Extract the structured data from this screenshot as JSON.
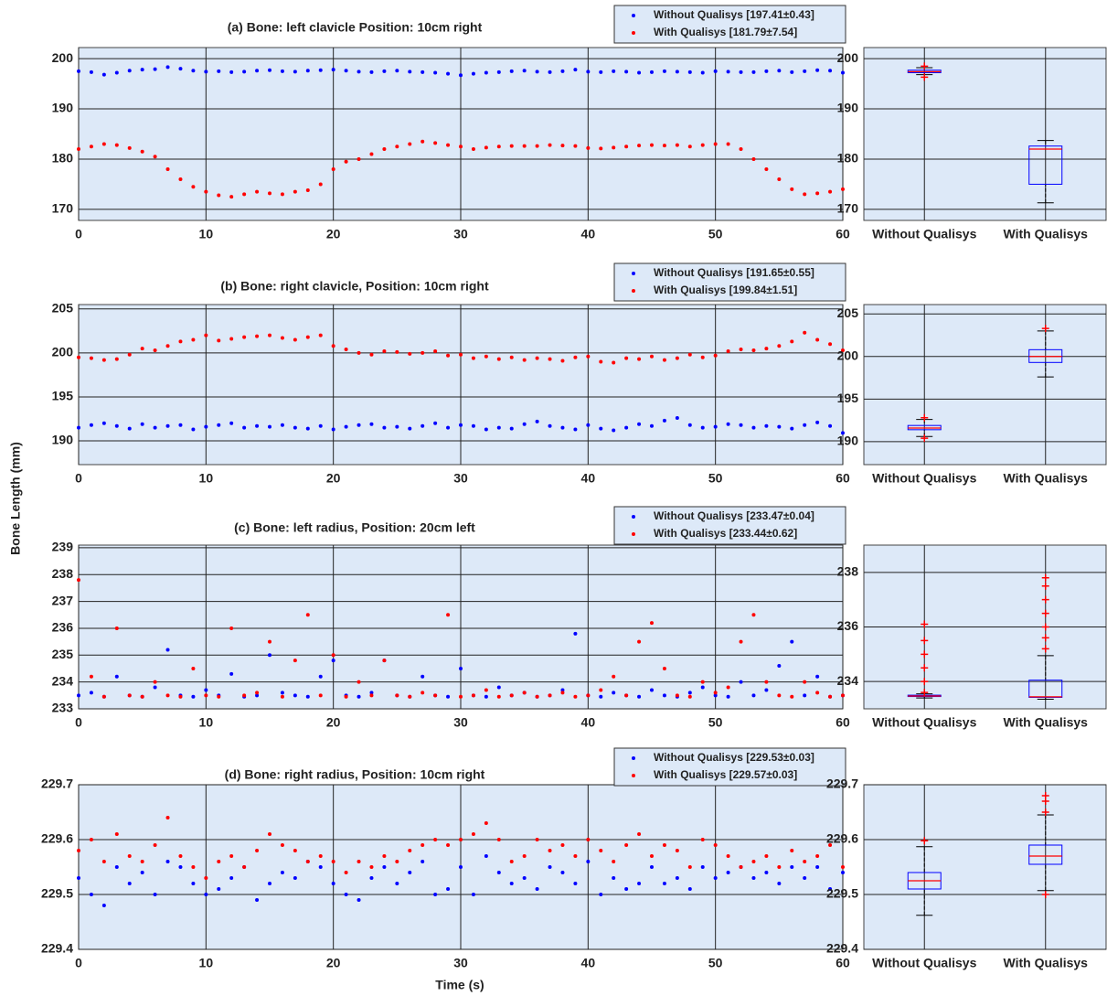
{
  "figure": {
    "xlabel": "Time (s)",
    "ylabel": "Bone Length (mm)"
  },
  "chart_data": [
    {
      "type": "scatter",
      "title": "(a) Bone: left clavicle Position: 10cm right",
      "x": [
        0,
        1,
        2,
        3,
        4,
        5,
        6,
        7,
        8,
        9,
        10,
        11,
        12,
        13,
        14,
        15,
        16,
        17,
        18,
        19,
        20,
        21,
        22,
        23,
        24,
        25,
        26,
        27,
        28,
        29,
        30,
        31,
        32,
        33,
        34,
        35,
        36,
        37,
        38,
        39,
        40,
        41,
        42,
        43,
        44,
        45,
        46,
        47,
        48,
        49,
        50,
        51,
        52,
        53,
        54,
        55,
        56,
        57,
        58,
        59,
        60
      ],
      "series": [
        {
          "name": "Without Qualisys [197.41±0.43]",
          "color": "#0000ff",
          "values": [
            197.5,
            197.3,
            196.8,
            197.2,
            197.6,
            197.8,
            197.9,
            198.3,
            198.0,
            197.6,
            197.4,
            197.5,
            197.3,
            197.4,
            197.6,
            197.7,
            197.5,
            197.4,
            197.6,
            197.7,
            197.8,
            197.6,
            197.4,
            197.3,
            197.5,
            197.6,
            197.4,
            197.3,
            197.2,
            197.0,
            196.7,
            197.0,
            197.2,
            197.3,
            197.5,
            197.6,
            197.4,
            197.3,
            197.5,
            197.8,
            197.4,
            197.3,
            197.5,
            197.4,
            197.2,
            197.3,
            197.5,
            197.4,
            197.3,
            197.2,
            197.5,
            197.4,
            197.3,
            197.3,
            197.5,
            197.6,
            197.3,
            197.5,
            197.7,
            197.6,
            197.2
          ]
        },
        {
          "name": "With Qualisys [181.79±7.54]",
          "color": "#ff0000",
          "values": [
            182,
            182.5,
            183,
            182.8,
            182.2,
            181.5,
            180.5,
            178,
            176,
            174.5,
            173.5,
            172.8,
            172.5,
            173,
            173.5,
            173.2,
            173,
            173.5,
            173.8,
            175,
            178,
            179.5,
            180,
            181,
            182,
            182.5,
            183,
            183.5,
            183.2,
            182.8,
            182.5,
            182,
            182.3,
            182.5,
            182.6,
            182.6,
            182.6,
            182.8,
            182.7,
            182.6,
            182.2,
            182.1,
            182.3,
            182.5,
            182.7,
            182.8,
            182.7,
            182.8,
            182.5,
            182.8,
            183,
            183,
            182,
            180,
            178,
            176,
            174,
            173,
            173.2,
            173.5,
            174
          ]
        }
      ],
      "xlim": [
        0,
        60
      ],
      "xticks": [
        0,
        10,
        20,
        30,
        40,
        50,
        60
      ],
      "ylim": [
        167.8,
        202.2
      ],
      "yticks": [
        170,
        180,
        190,
        200
      ],
      "grid": true
    },
    {
      "type": "scatter",
      "title": "(b) Bone: right clavicle, Position: 10cm right",
      "x": [
        0,
        1,
        2,
        3,
        4,
        5,
        6,
        7,
        8,
        9,
        10,
        11,
        12,
        13,
        14,
        15,
        16,
        17,
        18,
        19,
        20,
        21,
        22,
        23,
        24,
        25,
        26,
        27,
        28,
        29,
        30,
        31,
        32,
        33,
        34,
        35,
        36,
        37,
        38,
        39,
        40,
        41,
        42,
        43,
        44,
        45,
        46,
        47,
        48,
        49,
        50,
        51,
        52,
        53,
        54,
        55,
        56,
        57,
        58,
        59,
        60
      ],
      "series": [
        {
          "name": "Without Qualisys [191.65±0.55]",
          "color": "#0000ff",
          "values": [
            191.5,
            191.8,
            192,
            191.7,
            191.4,
            191.9,
            191.5,
            191.7,
            191.8,
            191.3,
            191.6,
            191.8,
            192,
            191.5,
            191.7,
            191.6,
            191.8,
            191.5,
            191.4,
            191.7,
            191.3,
            191.6,
            191.8,
            191.9,
            191.5,
            191.6,
            191.4,
            191.7,
            192,
            191.5,
            191.8,
            191.7,
            191.3,
            191.5,
            191.4,
            191.9,
            192.2,
            191.7,
            191.5,
            191.3,
            191.8,
            191.4,
            191.2,
            191.5,
            191.9,
            191.7,
            192.3,
            192.6,
            191.8,
            191.5,
            191.6,
            191.9,
            191.8,
            191.5,
            191.7,
            191.6,
            191.4,
            191.8,
            192.1,
            191.7,
            190.9
          ]
        },
        {
          "name": "With Qualisys [199.84±1.51]",
          "color": "#ff0000",
          "values": [
            199.5,
            199.4,
            199.2,
            199.3,
            199.8,
            200.5,
            200.3,
            200.8,
            201.3,
            201.5,
            202,
            201.4,
            201.6,
            201.8,
            201.9,
            202,
            201.7,
            201.5,
            201.8,
            202,
            200.8,
            200.4,
            200,
            199.8,
            200.2,
            200.1,
            199.9,
            200,
            200.2,
            199.7,
            199.8,
            199.4,
            199.6,
            199.3,
            199.5,
            199.2,
            199.4,
            199.3,
            199.1,
            199.5,
            199.6,
            199,
            198.9,
            199.4,
            199.3,
            199.6,
            199.2,
            199.4,
            199.8,
            199.5,
            199.7,
            200.2,
            200.4,
            200.3,
            200.5,
            200.8,
            201.3,
            202.3,
            201.5,
            201,
            200.3
          ]
        }
      ],
      "xlim": [
        0,
        60
      ],
      "xticks": [
        0,
        10,
        20,
        30,
        40,
        50,
        60
      ],
      "ylim": [
        187.3,
        205.5
      ],
      "yticks": [
        190,
        195,
        200,
        205
      ],
      "grid": true
    },
    {
      "type": "scatter",
      "title": "(c) Bone: left radius, Position: 20cm left",
      "x": [
        0,
        1,
        2,
        3,
        4,
        5,
        6,
        7,
        8,
        9,
        10,
        11,
        12,
        13,
        14,
        15,
        16,
        17,
        18,
        19,
        20,
        21,
        22,
        23,
        24,
        25,
        26,
        27,
        28,
        29,
        30,
        31,
        32,
        33,
        34,
        35,
        36,
        37,
        38,
        39,
        40,
        41,
        42,
        43,
        44,
        45,
        46,
        47,
        48,
        49,
        50,
        51,
        52,
        53,
        54,
        55,
        56,
        57,
        58,
        59,
        60
      ],
      "series": [
        {
          "name": "Without Qualisys [233.47±0.04]",
          "color": "#0000ff",
          "values": [
            233.5,
            233.6,
            233.45,
            234.2,
            233.5,
            233.45,
            233.8,
            235.2,
            233.5,
            233.45,
            233.7,
            233.5,
            234.3,
            233.45,
            233.5,
            235,
            233.6,
            233.5,
            233.45,
            234.2,
            234.8,
            233.5,
            233.45,
            233.6,
            234.8,
            233.5,
            233.45,
            234.2,
            233.5,
            233.45,
            234.5,
            233.5,
            233.45,
            233.8,
            233.5,
            233.6,
            233.45,
            233.5,
            233.7,
            235.8,
            233.5,
            233.45,
            233.6,
            233.5,
            233.45,
            233.7,
            233.5,
            233.45,
            233.6,
            233.8,
            233.5,
            233.45,
            234,
            233.5,
            233.7,
            234.6,
            235.5,
            233.5,
            234.2,
            233.45,
            233.5
          ]
        },
        {
          "name": "With Qualisys [233.44±0.62]",
          "color": "#ff0000",
          "values": [
            237.8,
            234.2,
            233.45,
            236,
            233.5,
            233.45,
            234,
            233.5,
            233.45,
            234.5,
            233.5,
            233.45,
            236,
            233.5,
            233.6,
            235.5,
            233.45,
            234.8,
            236.5,
            233.5,
            235,
            233.45,
            234,
            233.5,
            234.8,
            233.5,
            233.45,
            233.6,
            233.5,
            236.5,
            233.45,
            233.5,
            233.7,
            233.45,
            233.5,
            233.6,
            233.45,
            233.5,
            233.6,
            233.45,
            233.5,
            233.7,
            234.2,
            233.5,
            235.5,
            236.2,
            234.5,
            233.5,
            233.45,
            234,
            233.6,
            233.8,
            235.5,
            236.5,
            234,
            233.5,
            233.45,
            234,
            233.6,
            233.45,
            233.5
          ]
        }
      ],
      "xlim": [
        0,
        60
      ],
      "xticks": [
        0,
        10,
        20,
        30,
        40,
        50,
        60
      ],
      "ylim": [
        233,
        239.1
      ],
      "yticks": [
        233,
        234,
        235,
        236,
        237,
        238,
        239
      ],
      "grid": true
    },
    {
      "type": "scatter",
      "title": "(d) Bone: right radius, Position: 10cm right",
      "xlabel": "Time (s)",
      "x": [
        0,
        1,
        2,
        3,
        4,
        5,
        6,
        7,
        8,
        9,
        10,
        11,
        12,
        13,
        14,
        15,
        16,
        17,
        18,
        19,
        20,
        21,
        22,
        23,
        24,
        25,
        26,
        27,
        28,
        29,
        30,
        31,
        32,
        33,
        34,
        35,
        36,
        37,
        38,
        39,
        40,
        41,
        42,
        43,
        44,
        45,
        46,
        47,
        48,
        49,
        50,
        51,
        52,
        53,
        54,
        55,
        56,
        57,
        58,
        59,
        60
      ],
      "series": [
        {
          "name": "Without Qualisys [229.53±0.03]",
          "color": "#0000ff",
          "values": [
            229.53,
            229.5,
            229.48,
            229.55,
            229.52,
            229.54,
            229.5,
            229.56,
            229.55,
            229.52,
            229.5,
            229.51,
            229.53,
            229.55,
            229.49,
            229.52,
            229.54,
            229.53,
            229.56,
            229.55,
            229.52,
            229.5,
            229.49,
            229.53,
            229.55,
            229.52,
            229.54,
            229.56,
            229.5,
            229.51,
            229.55,
            229.5,
            229.57,
            229.54,
            229.52,
            229.53,
            229.51,
            229.55,
            229.54,
            229.52,
            229.56,
            229.5,
            229.53,
            229.51,
            229.52,
            229.55,
            229.52,
            229.53,
            229.51,
            229.55,
            229.53,
            229.54,
            229.55,
            229.53,
            229.54,
            229.52,
            229.55,
            229.53,
            229.55,
            229.51,
            229.54
          ]
        },
        {
          "name": "With Qualisys [229.57±0.03]",
          "color": "#ff0000",
          "values": [
            229.58,
            229.6,
            229.56,
            229.61,
            229.57,
            229.56,
            229.59,
            229.64,
            229.57,
            229.55,
            229.53,
            229.56,
            229.57,
            229.55,
            229.58,
            229.61,
            229.59,
            229.58,
            229.56,
            229.57,
            229.56,
            229.54,
            229.56,
            229.55,
            229.57,
            229.56,
            229.58,
            229.59,
            229.6,
            229.59,
            229.6,
            229.61,
            229.63,
            229.6,
            229.56,
            229.57,
            229.6,
            229.58,
            229.59,
            229.57,
            229.6,
            229.58,
            229.56,
            229.59,
            229.61,
            229.57,
            229.59,
            229.58,
            229.55,
            229.6,
            229.59,
            229.57,
            229.55,
            229.56,
            229.57,
            229.55,
            229.58,
            229.56,
            229.57,
            229.59,
            229.55
          ]
        }
      ],
      "xlim": [
        0,
        60
      ],
      "xticks": [
        0,
        10,
        20,
        30,
        40,
        50,
        60
      ],
      "ylim": [
        229.4,
        229.7
      ],
      "yticks": [
        229.4,
        229.5,
        229.6,
        229.7
      ],
      "grid": true
    },
    {
      "type": "box",
      "categories": [
        "Without Qualisys",
        "With Qualisys"
      ],
      "box_color": "#0000ff",
      "median_color": "#ff0000",
      "outlier_color": "#ff0000",
      "boxes": [
        {
          "whisker_low": 196.8,
          "q1": 197.2,
          "median": 197.4,
          "q3": 197.7,
          "whisker_high": 198.2,
          "outliers": [
            196.3,
            198.5
          ]
        },
        {
          "whisker_low": 171.3,
          "q1": 175,
          "median": 182,
          "q3": 182.6,
          "whisker_high": 183.7,
          "outliers": []
        }
      ],
      "ylim": [
        167.8,
        202.2
      ],
      "yticks": [
        170,
        180,
        190,
        200
      ],
      "grid": true
    },
    {
      "type": "box",
      "categories": [
        "Without Qualisys",
        "With Qualisys"
      ],
      "box_color": "#0000ff",
      "median_color": "#ff0000",
      "outlier_color": "#ff0000",
      "boxes": [
        {
          "whisker_low": 190.6,
          "q1": 191.4,
          "median": 191.6,
          "q3": 191.9,
          "whisker_high": 192.6,
          "outliers": [
            190.4,
            192.8
          ]
        },
        {
          "whisker_low": 197.6,
          "q1": 199.3,
          "median": 200,
          "q3": 200.8,
          "whisker_high": 203,
          "outliers": [
            203.3
          ]
        }
      ],
      "ylim": [
        187.3,
        206.1
      ],
      "yticks": [
        190,
        195,
        200,
        205
      ],
      "grid": true
    },
    {
      "type": "box",
      "categories": [
        "Without Qualisys",
        "With Qualisys"
      ],
      "box_color": "#0000ff",
      "median_color": "#ff0000",
      "outlier_color": "#ff0000",
      "boxes": [
        {
          "whisker_low": 233.4,
          "q1": 233.45,
          "median": 233.47,
          "q3": 233.5,
          "whisker_high": 233.55,
          "outliers": [
            233.6,
            234,
            234.5,
            235,
            235.5,
            236.1
          ]
        },
        {
          "whisker_low": 233.35,
          "q1": 233.42,
          "median": 233.44,
          "q3": 234.05,
          "whisker_high": 234.95,
          "outliers": [
            235.2,
            235.6,
            236,
            236.5,
            237,
            237.5,
            237.8
          ]
        }
      ],
      "ylim": [
        233,
        239
      ],
      "yticks": [
        234,
        236,
        238
      ],
      "grid": true
    },
    {
      "type": "box",
      "categories": [
        "Without Qualisys",
        "With Qualisys"
      ],
      "box_color": "#0000ff",
      "median_color": "#ff0000",
      "outlier_color": "#ff0000",
      "boxes": [
        {
          "whisker_low": 229.462,
          "q1": 229.51,
          "median": 229.525,
          "q3": 229.54,
          "whisker_high": 229.587,
          "outliers": [
            229.598
          ]
        },
        {
          "whisker_low": 229.507,
          "q1": 229.555,
          "median": 229.57,
          "q3": 229.59,
          "whisker_high": 229.645,
          "outliers": [
            229.5,
            229.65,
            229.67,
            229.68
          ]
        }
      ],
      "ylim": [
        229.4,
        229.7
      ],
      "yticks": [
        229.4,
        229.5,
        229.6,
        229.7
      ],
      "grid": true
    }
  ]
}
